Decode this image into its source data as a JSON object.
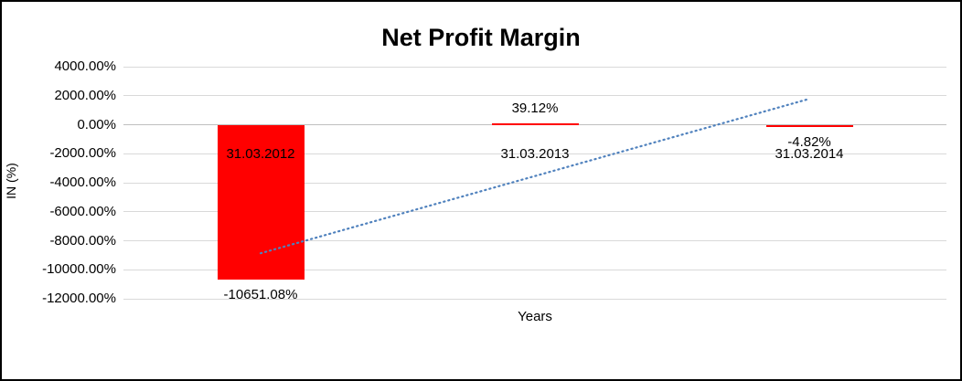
{
  "chart_data": {
    "type": "bar",
    "title": "Net Profit Margin",
    "xlabel": "Years",
    "ylabel": "IN (%)",
    "categories": [
      "31.03.2012",
      "31.03.2013",
      "31.03.2014"
    ],
    "values": [
      -10651.08,
      39.12,
      -4.82
    ],
    "data_labels": [
      "-10651.08%",
      "39.12%",
      "-4.82%"
    ],
    "ylim": [
      -12000,
      4000
    ],
    "ytick_step": 2000,
    "yticks": [
      {
        "value": 4000,
        "label": "4000.00%"
      },
      {
        "value": 2000,
        "label": "2000.00%"
      },
      {
        "value": 0,
        "label": "0.00%"
      },
      {
        "value": -2000,
        "label": "-2000.00%"
      },
      {
        "value": -4000,
        "label": "-4000.00%"
      },
      {
        "value": -6000,
        "label": "-6000.00%"
      },
      {
        "value": -8000,
        "label": "-8000.00%"
      },
      {
        "value": -10000,
        "label": "-10000.00%"
      },
      {
        "value": -12000,
        "label": "-12000.00%"
      }
    ],
    "bar_color": "#ff0000",
    "gridline_color": "#d9d9d9",
    "grid": true,
    "legend": false,
    "trendline": {
      "type": "linear",
      "color": "#4f81bd",
      "style": "dotted"
    }
  }
}
